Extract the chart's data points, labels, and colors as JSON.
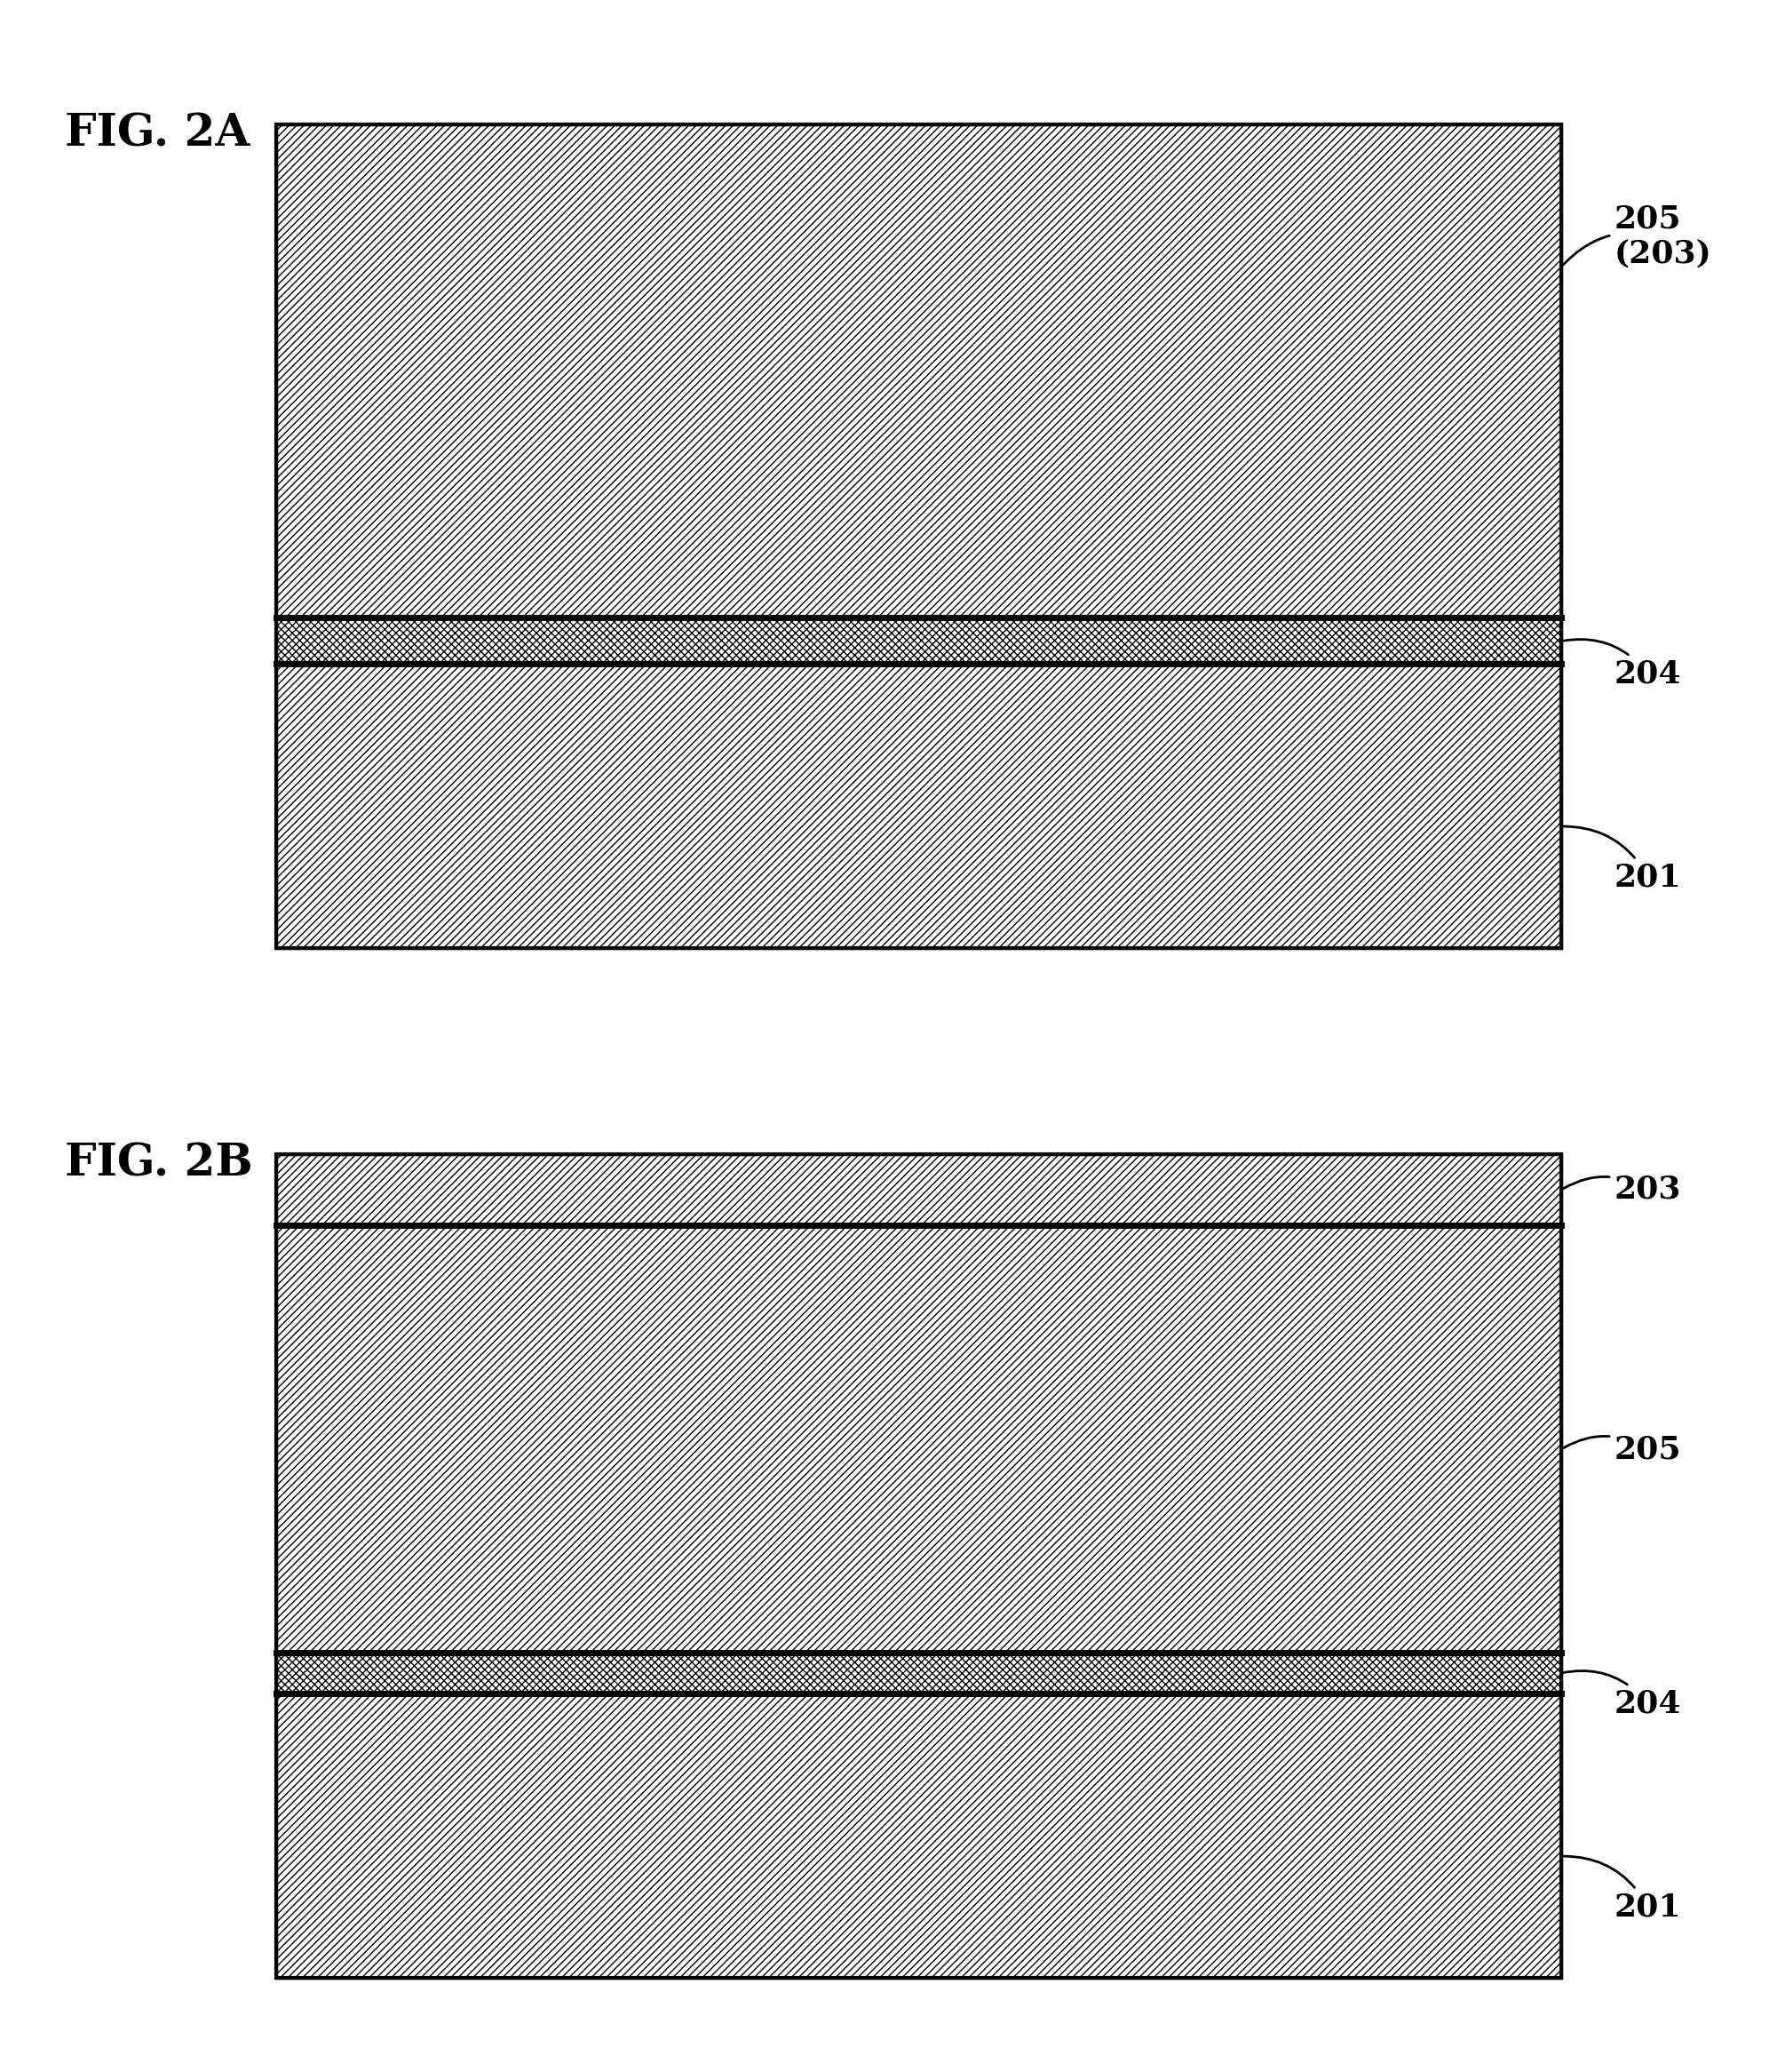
{
  "fig_label_a": "FIG. 2A",
  "fig_label_b": "FIG. 2B",
  "label_205_203": "205\n(203)",
  "label_204_a": "204",
  "label_201_a": "201",
  "label_203_b": "203",
  "label_205_b": "205",
  "label_204_b": "204",
  "label_201_b": "201",
  "bg_color": "#ffffff",
  "line_color": "#000000",
  "hatch_color": "#000000"
}
